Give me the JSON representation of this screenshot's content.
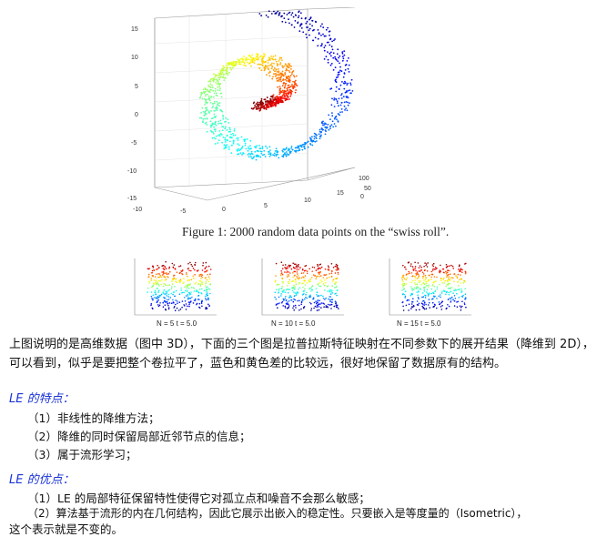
{
  "figure1": {
    "caption": "Figure 1: 2000 random data points on the “swiss roll”.",
    "z_ticks": [
      "15",
      "10",
      "5",
      "0",
      "-5",
      "-10",
      "-15"
    ],
    "x_ticks": [
      "-10",
      "-5",
      "0",
      "5",
      "10",
      "15"
    ],
    "y_ticks": [
      "0",
      "50",
      "100"
    ]
  },
  "figure2": {
    "panels": [
      {
        "label": "N = 5    t = 5.0"
      },
      {
        "label": "N = 10   t = 5.0"
      },
      {
        "label": "N = 15   t = 5.0"
      }
    ]
  },
  "intro": {
    "text": "上图说明的是高维数据（图中 3D），下面的三个图是拉普拉斯特征映射在不同参数下的展开结果（降维到 2D），可以看到，似乎是要把整个卷拉平了，蓝色和黄色差的比较远，很好地保留了数据原有的结构。"
  },
  "features": {
    "heading": "LE 的特点：",
    "items": [
      "（1）非线性的降维方法；",
      "（2）降维的同时保留局部近邻节点的信息；",
      "（3）属于流形学习；"
    ]
  },
  "advantages": {
    "heading": "LE 的优点：",
    "items": [
      "（1）LE 的局部特征保留特性使得它对孤立点和噪音不会那么敏感；",
      "（2）算法基于流形的内在几何结构，因此它展示出嵌入的稳定性。只要嵌入是等度量的（Isometric），",
      "这个表示就是不变的。"
    ]
  }
}
